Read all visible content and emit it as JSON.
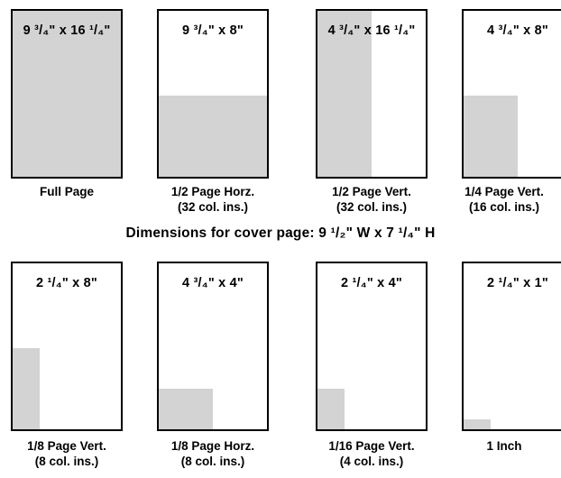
{
  "top_row": [
    {
      "size": "9 ³/₄\" x 16 ¹/₄\"",
      "caption_line1": "Full Page",
      "caption_line2": "",
      "fill_w": 1.0,
      "fill_h": 1.0
    },
    {
      "size": "9 ³/₄\" x 8\"",
      "caption_line1": "1/2 Page Horz.",
      "caption_line2": "(32 col. ins.)",
      "fill_w": 1.0,
      "fill_h": 0.49
    },
    {
      "size": "4 ³/₄\" x 16 ¹/₄\"",
      "caption_line1": "1/2 Page Vert.",
      "caption_line2": "(32 col. ins.)",
      "fill_w": 0.5,
      "fill_h": 1.0
    },
    {
      "size": "4 ³/₄\" x 8\"",
      "caption_line1": "1/4 Page Vert.",
      "caption_line2": "(16 col. ins.)",
      "fill_w": 0.5,
      "fill_h": 0.49
    }
  ],
  "heading": "Dimensions for cover page: 9 ¹/₂\" W x 7 ¹/₄\" H",
  "bottom_row": [
    {
      "size": "2 ¹/₄\" x 8\"",
      "caption_line1": "1/8 Page Vert.",
      "caption_line2": "(8 col. ins.)",
      "fill_w": 0.25,
      "fill_h": 0.49
    },
    {
      "size": "4 ³/₄\" x 4\"",
      "caption_line1": "1/8 Page Horz.",
      "caption_line2": "(8 col. ins.)",
      "fill_w": 0.5,
      "fill_h": 0.245
    },
    {
      "size": "2 ¹/₄\" x 4\"",
      "caption_line1": "1/16 Page Vert.",
      "caption_line2": "(4 col. ins.)",
      "fill_w": 0.25,
      "fill_h": 0.245
    },
    {
      "size": "2 ¹/₄\" x 1\"",
      "caption_line1": "1 Inch",
      "caption_line2": "",
      "fill_w": 0.25,
      "fill_h": 0.06
    }
  ]
}
